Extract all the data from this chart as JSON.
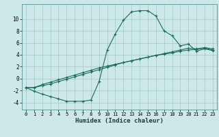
{
  "xlabel": "Humidex (Indice chaleur)",
  "bg_color": "#cce8e8",
  "grid_color": "#aacccc",
  "line_color": "#1a6b5a",
  "xlim": [
    -0.5,
    23.5
  ],
  "ylim": [
    -5.2,
    12.5
  ],
  "xticks": [
    0,
    1,
    2,
    3,
    4,
    5,
    6,
    7,
    8,
    9,
    10,
    11,
    12,
    13,
    14,
    15,
    16,
    17,
    18,
    19,
    20,
    21,
    22,
    23
  ],
  "yticks": [
    -4,
    -2,
    0,
    2,
    4,
    6,
    8,
    10
  ],
  "line1_x": [
    0,
    1,
    2,
    3,
    4,
    5,
    6,
    7,
    8,
    9,
    10,
    11,
    12,
    13,
    14,
    15,
    16,
    17,
    18,
    19,
    20,
    21,
    22,
    23
  ],
  "line1_y": [
    -1.5,
    -2.1,
    -2.6,
    -3.0,
    -3.4,
    -3.8,
    -3.8,
    -3.8,
    -3.6,
    -0.5,
    4.8,
    7.5,
    9.8,
    11.2,
    11.4,
    11.4,
    10.5,
    8.0,
    7.2,
    5.5,
    5.8,
    4.6,
    5.0,
    4.7
  ],
  "line2_x": [
    0,
    1,
    2,
    3,
    4,
    5,
    6,
    7,
    8,
    9,
    10,
    11,
    12,
    13,
    14,
    15,
    16,
    17,
    18,
    19,
    20,
    21,
    22,
    23
  ],
  "line2_y": [
    -1.5,
    -1.5,
    -1.2,
    -0.9,
    -0.5,
    -0.1,
    0.3,
    0.7,
    1.1,
    1.5,
    1.9,
    2.3,
    2.7,
    3.0,
    3.3,
    3.6,
    3.9,
    4.2,
    4.5,
    4.8,
    5.1,
    5.0,
    5.2,
    5.0
  ],
  "line3_x": [
    0,
    1,
    2,
    3,
    4,
    5,
    6,
    7,
    8,
    9,
    10,
    11,
    12,
    13,
    14,
    15,
    16,
    17,
    18,
    19,
    20,
    21,
    22,
    23
  ],
  "line3_y": [
    -1.5,
    -1.5,
    -1.0,
    -0.6,
    -0.2,
    0.2,
    0.6,
    1.0,
    1.4,
    1.8,
    2.1,
    2.4,
    2.7,
    3.0,
    3.3,
    3.6,
    3.9,
    4.1,
    4.3,
    4.6,
    4.8,
    4.9,
    5.1,
    4.8
  ]
}
